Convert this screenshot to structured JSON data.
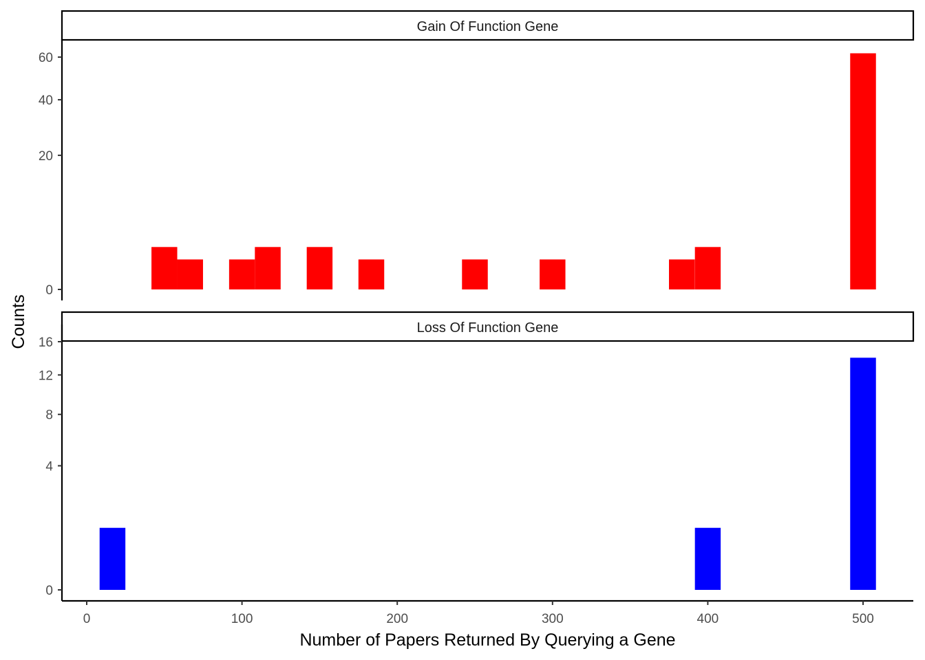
{
  "chart_data": {
    "type": "bar",
    "xlabel": "Number of Papers Returned By Querying a Gene",
    "ylabel": "Counts",
    "x_ticks": [
      0,
      100,
      200,
      300,
      400,
      500
    ],
    "x_tick_labels": [
      "0",
      "100",
      "200",
      "300",
      "400",
      "500"
    ],
    "xlim": [
      -15,
      535
    ],
    "bin_width": 16.6,
    "y_scale": "sqrt",
    "grid": false,
    "legend": "none",
    "panels": [
      {
        "name": "Gain Of Function Gene",
        "color": "#ff0000",
        "y_ticks": [
          0,
          20,
          40,
          60
        ],
        "y_tick_labels": [
          "0",
          "20",
          "40",
          "60"
        ],
        "ylim": [
          0,
          64
        ],
        "bins": [
          {
            "x": 50,
            "count": 2
          },
          {
            "x": 66.6,
            "count": 1
          },
          {
            "x": 100,
            "count": 1
          },
          {
            "x": 116.6,
            "count": 2
          },
          {
            "x": 150,
            "count": 2
          },
          {
            "x": 183.3,
            "count": 1
          },
          {
            "x": 250,
            "count": 1
          },
          {
            "x": 300,
            "count": 1
          },
          {
            "x": 383.3,
            "count": 1
          },
          {
            "x": 400,
            "count": 2
          },
          {
            "x": 500,
            "count": 62
          }
        ]
      },
      {
        "name": "Loss Of Function Gene",
        "color": "#0000ff",
        "y_ticks": [
          0,
          4,
          8,
          12,
          16
        ],
        "y_tick_labels": [
          "0",
          "4",
          "8",
          "12",
          "16"
        ],
        "ylim": [
          0,
          16
        ],
        "bins": [
          {
            "x": 16.6,
            "count": 1
          },
          {
            "x": 400,
            "count": 1
          },
          {
            "x": 500,
            "count": 14
          }
        ]
      }
    ]
  }
}
